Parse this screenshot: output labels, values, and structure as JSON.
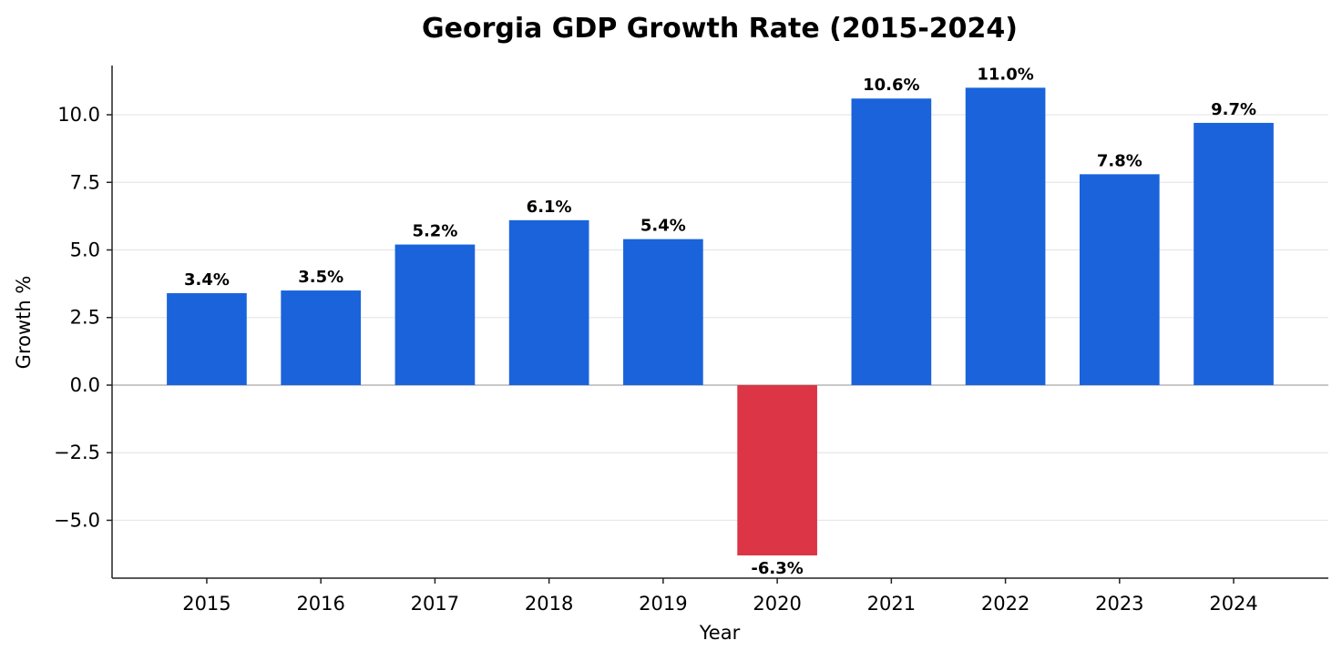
{
  "chart_data": {
    "type": "bar",
    "title": "Georgia GDP Growth Rate (2015-2024)",
    "xlabel": "Year",
    "ylabel": "Growth %",
    "categories": [
      "2015",
      "2016",
      "2017",
      "2018",
      "2019",
      "2020",
      "2021",
      "2022",
      "2023",
      "2024"
    ],
    "values": [
      3.4,
      3.5,
      5.2,
      6.1,
      5.4,
      -6.3,
      10.6,
      11.0,
      7.8,
      9.7
    ],
    "data_labels": [
      "3.4%",
      "3.5%",
      "5.2%",
      "6.1%",
      "5.4%",
      "-6.3%",
      "10.6%",
      "11.0%",
      "7.8%",
      "9.7%"
    ],
    "ylim": [
      -7.14,
      11.82
    ],
    "yticks": [
      -5.0,
      -2.5,
      0.0,
      2.5,
      5.0,
      7.5,
      10.0
    ],
    "ytick_labels": [
      "−5.0",
      "−2.5",
      "0.0",
      "2.5",
      "5.0",
      "7.5",
      "10.0"
    ],
    "grid": "horizontal",
    "colors": {
      "positive": "#1a63db",
      "negative": "#dc3545"
    }
  }
}
